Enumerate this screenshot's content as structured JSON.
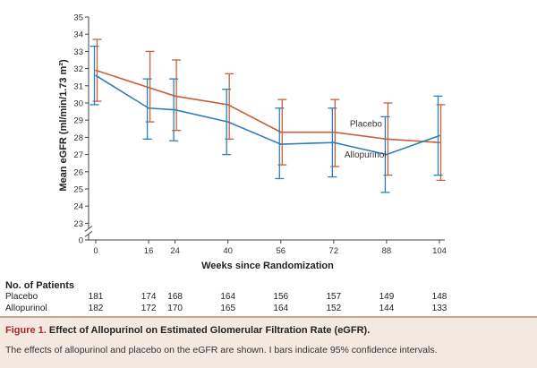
{
  "chart_data": {
    "type": "line",
    "xlabel": "Weeks since Randomization",
    "ylabel": "Mean eGFR (ml/min/1.73 m²)",
    "x": [
      0,
      16,
      24,
      40,
      56,
      72,
      88,
      104
    ],
    "xticks": [
      "0",
      "16",
      "24",
      "40",
      "56",
      "72",
      "88",
      "104"
    ],
    "yticks": [
      "0",
      "23",
      "24",
      "25",
      "26",
      "27",
      "28",
      "29",
      "30",
      "31",
      "32",
      "33",
      "34",
      "35"
    ],
    "ylim": [
      23,
      35
    ],
    "axis_break": true,
    "grid": false,
    "series": [
      {
        "name": "Placebo",
        "color": "#c8603c",
        "values": [
          31.9,
          30.9,
          30.4,
          29.9,
          28.3,
          28.3,
          27.9,
          27.7
        ],
        "ci_low": [
          30.1,
          28.9,
          28.4,
          27.9,
          26.4,
          26.3,
          25.8,
          25.5
        ],
        "ci_high": [
          33.7,
          33.0,
          32.5,
          31.7,
          30.2,
          30.2,
          30.0,
          29.9
        ]
      },
      {
        "name": "Allopurinol",
        "color": "#2f7fb8",
        "values": [
          31.6,
          29.7,
          29.6,
          28.9,
          27.6,
          27.7,
          27.0,
          28.1
        ],
        "ci_low": [
          29.9,
          27.9,
          27.8,
          27.0,
          25.6,
          25.7,
          24.8,
          25.8
        ],
        "ci_high": [
          33.3,
          31.4,
          31.4,
          30.8,
          29.7,
          29.7,
          29.2,
          30.4
        ]
      }
    ]
  },
  "patients": {
    "header": "No. of Patients",
    "rows": [
      {
        "label": "Placebo",
        "values": [
          "181",
          "174",
          "168",
          "164",
          "156",
          "157",
          "149",
          "148"
        ]
      },
      {
        "label": "Allopurinol",
        "values": [
          "182",
          "172",
          "170",
          "165",
          "164",
          "152",
          "144",
          "133"
        ]
      }
    ]
  },
  "caption": {
    "figure_label": "Figure 1.",
    "title": "Effect of Allopurinol on Estimated Glomerular Filtration Rate (eGFR).",
    "text": "The effects of allopurinol and placebo on the eGFR are shown. I bars indicate 95% confidence intervals."
  }
}
